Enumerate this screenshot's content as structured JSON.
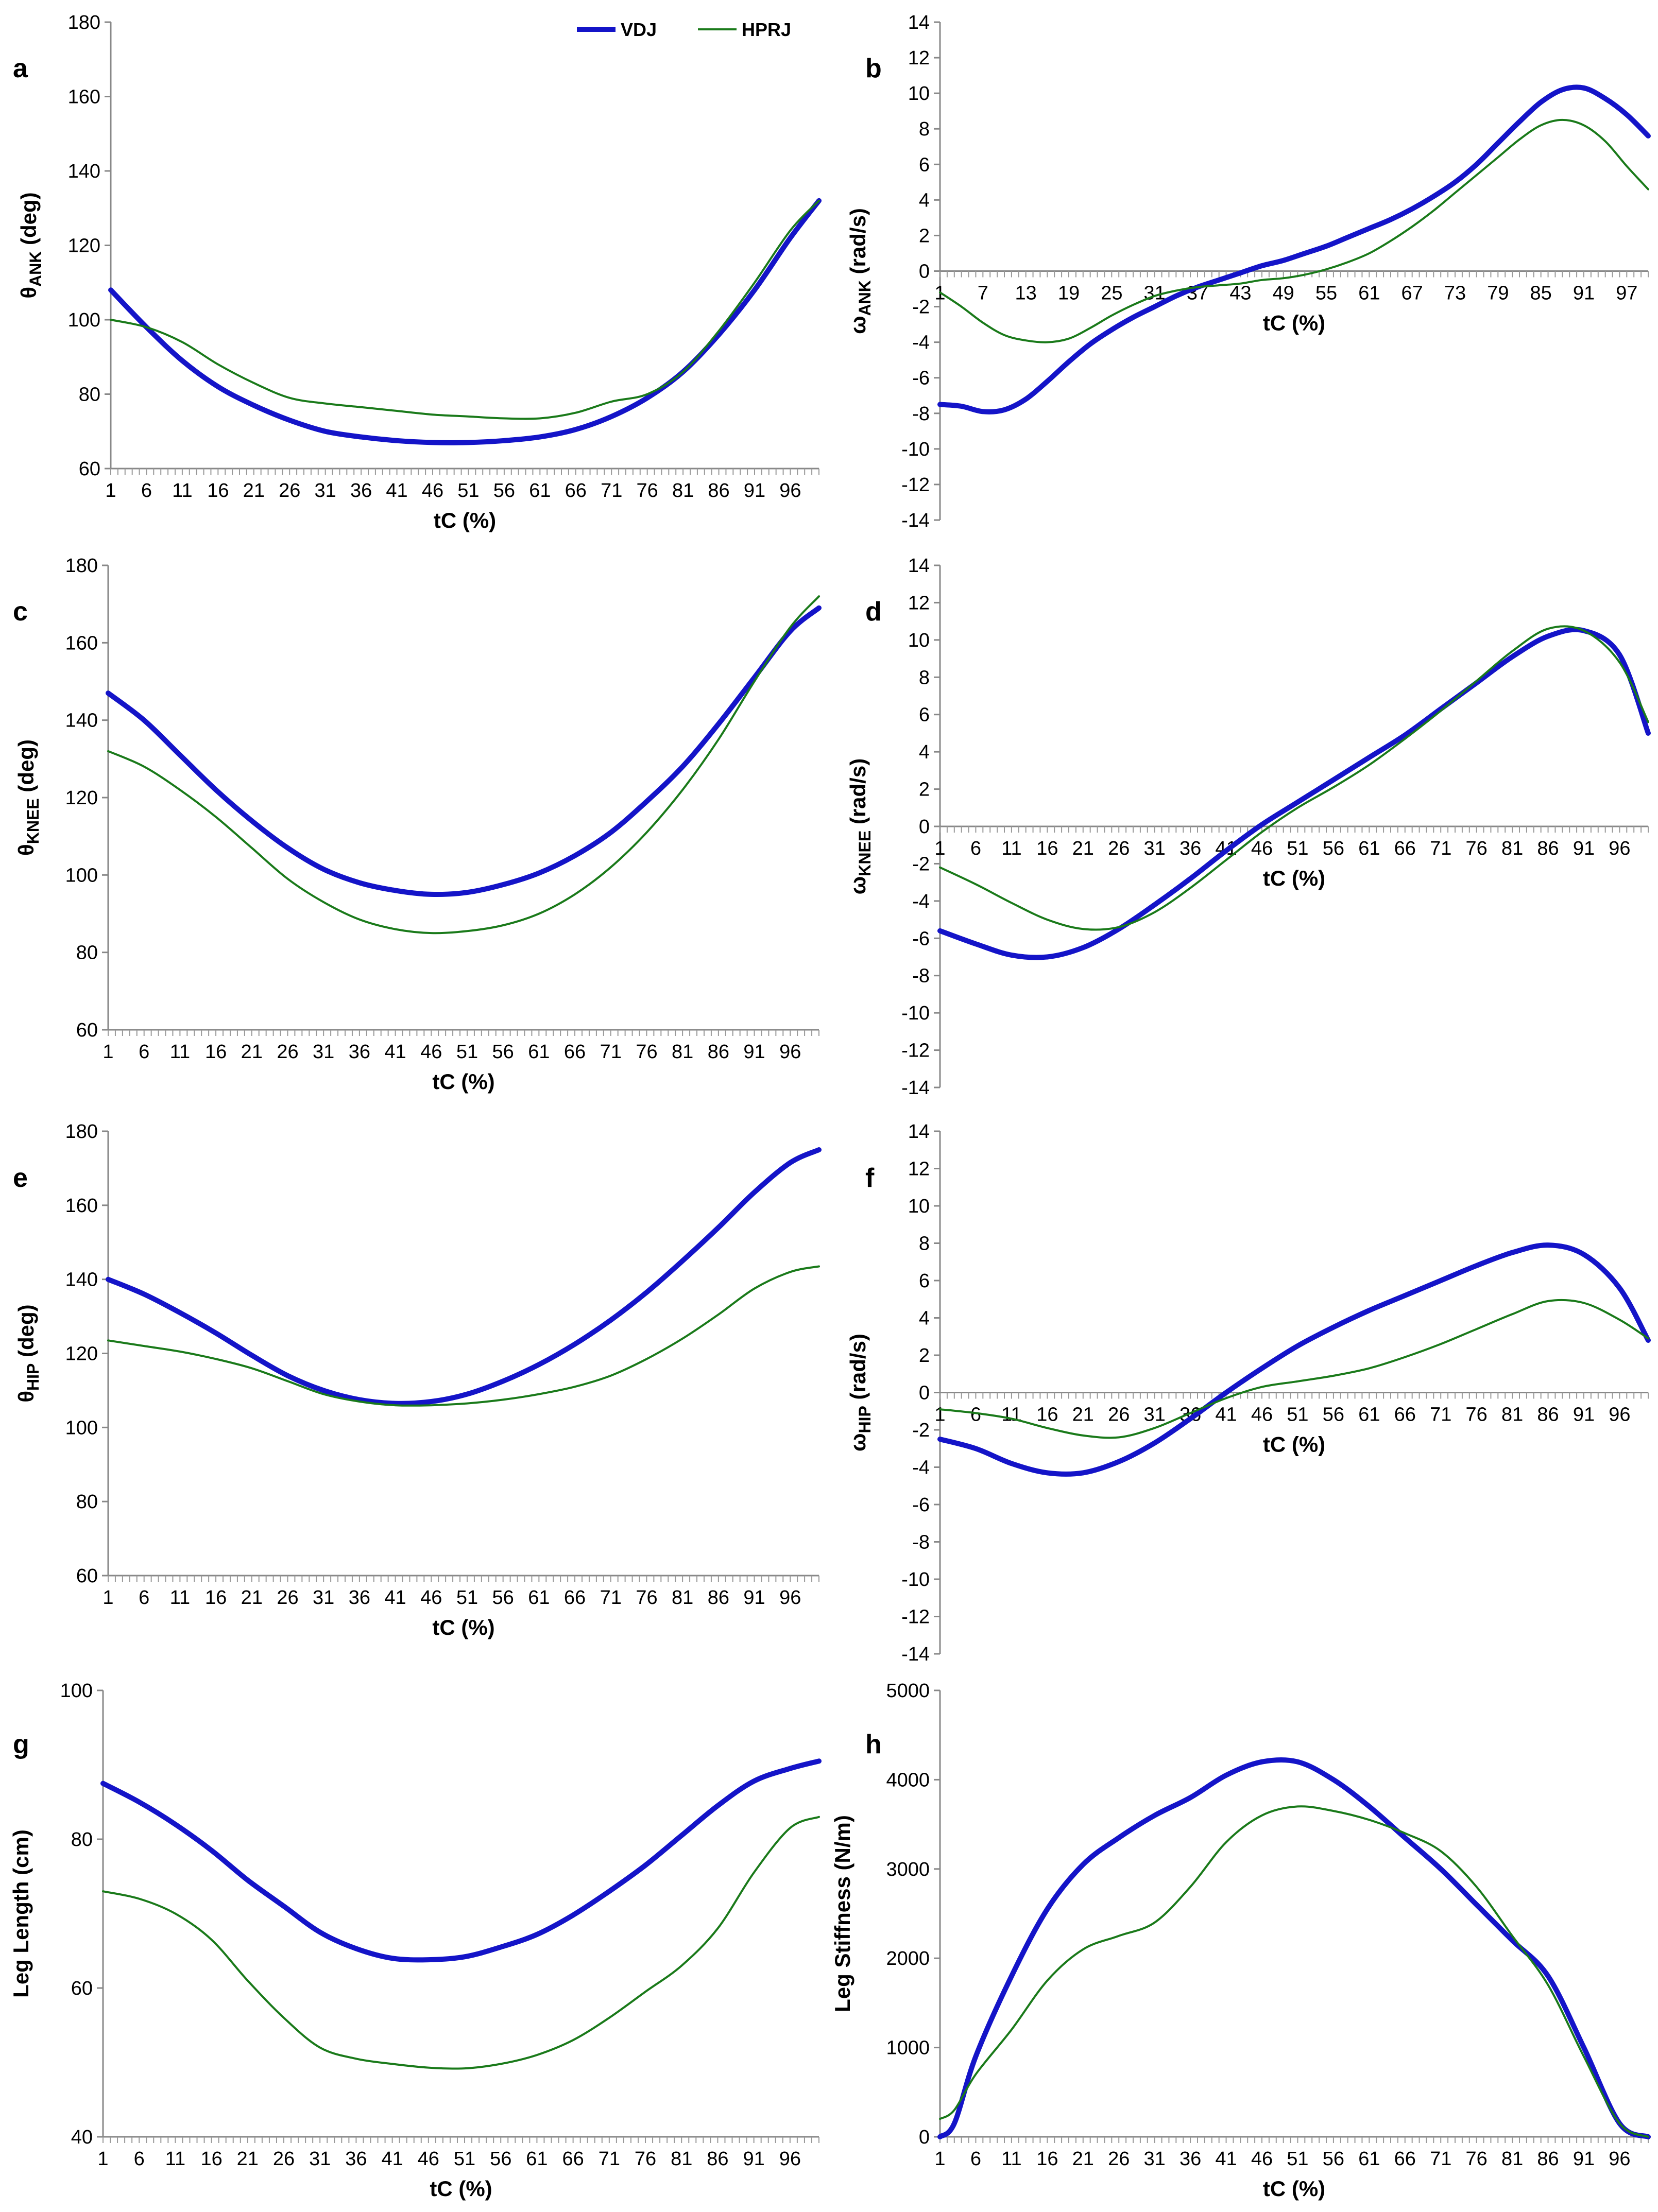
{
  "legend": {
    "series_names": [
      "VDJ",
      "HPRJ"
    ],
    "colors": [
      "#1414c8",
      "#1a7a1a"
    ]
  },
  "chart_data": [
    {
      "id": "a",
      "panel_label": "a",
      "type": "line",
      "ylabel": "θANK (deg)",
      "ylabel_symbol": "θ",
      "ylabel_sub": "ANK",
      "ylabel_unit": " (deg)",
      "xlabel": "tC (%)",
      "ylim": [
        60,
        180
      ],
      "yticks": [
        60,
        80,
        100,
        120,
        140,
        160,
        180
      ],
      "xlim": [
        1,
        100
      ],
      "xtick_start": 1,
      "xtick_step": 5,
      "xaxis_at_zero": false,
      "x": [
        1,
        6,
        11,
        16,
        21,
        26,
        31,
        36,
        41,
        46,
        51,
        56,
        61,
        66,
        71,
        76,
        81,
        86,
        91,
        96,
        100
      ],
      "series": [
        {
          "name": "VDJ",
          "values": [
            108,
            98,
            89,
            82,
            77,
            73,
            70,
            68.5,
            67.5,
            67,
            67,
            67.5,
            68.5,
            70.5,
            74,
            79,
            86,
            96,
            108,
            122,
            132
          ]
        },
        {
          "name": "HPRJ",
          "values": [
            100,
            98,
            94,
            88,
            83,
            79,
            77.5,
            76.5,
            75.5,
            74.5,
            74,
            73.5,
            73.5,
            75,
            78,
            80,
            86,
            97,
            110,
            124,
            132
          ]
        }
      ]
    },
    {
      "id": "b",
      "panel_label": "b",
      "type": "line",
      "ylabel": "ωANK (rad/s)",
      "ylabel_symbol": "ω",
      "ylabel_sub": "ANK",
      "ylabel_unit": " (rad/s)",
      "xlabel": "tC (%)",
      "ylim": [
        -14,
        14
      ],
      "yticks": [
        -14,
        -12,
        -10,
        -8,
        -6,
        -4,
        -2,
        0,
        2,
        4,
        6,
        8,
        10,
        12,
        14
      ],
      "xlim": [
        1,
        100
      ],
      "xtick_start": 1,
      "xtick_step": 6,
      "xaxis_at_zero": true,
      "x": [
        1,
        4,
        7,
        10,
        13,
        16,
        19,
        22,
        25,
        28,
        31,
        34,
        37,
        40,
        43,
        46,
        49,
        52,
        55,
        58,
        61,
        64,
        67,
        70,
        73,
        76,
        79,
        82,
        85,
        88,
        91,
        94,
        97,
        100
      ],
      "series": [
        {
          "name": "VDJ",
          "values": [
            -7.5,
            -7.6,
            -7.9,
            -7.8,
            -7.2,
            -6.2,
            -5.1,
            -4.1,
            -3.3,
            -2.6,
            -2.0,
            -1.4,
            -0.9,
            -0.5,
            -0.1,
            0.3,
            0.6,
            1.0,
            1.4,
            1.9,
            2.4,
            2.9,
            3.5,
            4.2,
            5.0,
            6.0,
            7.2,
            8.4,
            9.5,
            10.2,
            10.3,
            9.7,
            8.8,
            7.6
          ]
        },
        {
          "name": "HPRJ",
          "values": [
            -1.2,
            -2.0,
            -2.9,
            -3.6,
            -3.9,
            -4.0,
            -3.8,
            -3.2,
            -2.5,
            -1.9,
            -1.4,
            -1.1,
            -0.9,
            -0.8,
            -0.7,
            -0.5,
            -0.4,
            -0.2,
            0.1,
            0.5,
            1.0,
            1.7,
            2.5,
            3.4,
            4.4,
            5.4,
            6.4,
            7.4,
            8.2,
            8.5,
            8.2,
            7.3,
            5.9,
            4.6
          ]
        }
      ]
    },
    {
      "id": "c",
      "panel_label": "c",
      "type": "line",
      "ylabel": "θKNEE (deg)",
      "ylabel_symbol": "θ",
      "ylabel_sub": "KNEE",
      "ylabel_unit": " (deg)",
      "xlabel": "tC (%)",
      "ylim": [
        60,
        180
      ],
      "yticks": [
        60,
        80,
        100,
        120,
        140,
        160,
        180
      ],
      "xlim": [
        1,
        100
      ],
      "xtick_start": 1,
      "xtick_step": 5,
      "xaxis_at_zero": false,
      "x": [
        1,
        6,
        11,
        16,
        21,
        26,
        31,
        36,
        41,
        46,
        51,
        56,
        61,
        66,
        71,
        76,
        81,
        86,
        91,
        96,
        100
      ],
      "series": [
        {
          "name": "VDJ",
          "values": [
            147,
            140,
            131,
            122,
            114,
            107,
            101.5,
            98,
            96,
            95,
            95.5,
            97.5,
            100.5,
            105,
            111,
            119,
            128,
            139,
            151,
            163,
            169
          ]
        },
        {
          "name": "HPRJ",
          "values": [
            132,
            128,
            122,
            115,
            107,
            99,
            93,
            88.5,
            86,
            85,
            85.5,
            87,
            90,
            95,
            102,
            111,
            122,
            135,
            150,
            164,
            172
          ]
        }
      ]
    },
    {
      "id": "d",
      "panel_label": "d",
      "type": "line",
      "ylabel": "ωKNEE (rad/s)",
      "ylabel_symbol": "ω",
      "ylabel_sub": "KNEE",
      "ylabel_unit": " (rad/s)",
      "xlabel": "tC (%)",
      "ylim": [
        -14,
        14
      ],
      "yticks": [
        -14,
        -12,
        -10,
        -8,
        -6,
        -4,
        -2,
        0,
        2,
        4,
        6,
        8,
        10,
        12,
        14
      ],
      "xlim": [
        1,
        100
      ],
      "xtick_start": 1,
      "xtick_step": 5,
      "xaxis_at_zero": true,
      "x": [
        1,
        6,
        11,
        16,
        21,
        26,
        31,
        36,
        41,
        46,
        51,
        56,
        61,
        66,
        71,
        76,
        81,
        86,
        91,
        96,
        100
      ],
      "series": [
        {
          "name": "VDJ",
          "values": [
            -5.6,
            -6.3,
            -6.9,
            -7.0,
            -6.5,
            -5.5,
            -4.2,
            -2.8,
            -1.3,
            0.1,
            1.3,
            2.5,
            3.7,
            4.9,
            6.3,
            7.7,
            9.1,
            10.2,
            10.5,
            9.2,
            5.0
          ]
        },
        {
          "name": "HPRJ",
          "values": [
            -2.2,
            -3.1,
            -4.1,
            -5.0,
            -5.5,
            -5.4,
            -4.6,
            -3.3,
            -1.8,
            -0.3,
            1.0,
            2.1,
            3.3,
            4.7,
            6.2,
            7.8,
            9.4,
            10.6,
            10.5,
            8.8,
            5.6
          ]
        }
      ]
    },
    {
      "id": "e",
      "panel_label": "e",
      "type": "line",
      "ylabel": "θHIP (deg)",
      "ylabel_symbol": "θ",
      "ylabel_sub": "HIP",
      "ylabel_unit": " (deg)",
      "xlabel": "tC (%)",
      "ylim": [
        60,
        180
      ],
      "yticks": [
        60,
        80,
        100,
        120,
        140,
        160,
        180
      ],
      "xlim": [
        1,
        100
      ],
      "xtick_start": 1,
      "xtick_step": 5,
      "xaxis_at_zero": false,
      "x": [
        1,
        6,
        11,
        16,
        21,
        26,
        31,
        36,
        41,
        46,
        51,
        56,
        61,
        66,
        71,
        76,
        81,
        86,
        91,
        96,
        100
      ],
      "series": [
        {
          "name": "VDJ",
          "values": [
            140,
            136,
            131,
            125.5,
            119.5,
            114,
            110,
            107.5,
            106.5,
            107,
            109,
            112.5,
            117,
            122.5,
            129,
            136.5,
            145,
            154,
            163.5,
            171.5,
            175
          ]
        },
        {
          "name": "HPRJ",
          "values": [
            123.5,
            122,
            120.5,
            118.5,
            116,
            112.5,
            109,
            107,
            106,
            106,
            106.5,
            107.5,
            109,
            111,
            114,
            118.5,
            124,
            130.5,
            137.5,
            142,
            143.5
          ]
        }
      ]
    },
    {
      "id": "f",
      "panel_label": "f",
      "type": "line",
      "ylabel": "ωHIP (rad/s)",
      "ylabel_symbol": "ω",
      "ylabel_sub": "HIP",
      "ylabel_unit": " (rad/s)",
      "xlabel": "tC (%)",
      "ylim": [
        -14,
        14
      ],
      "yticks": [
        -14,
        -12,
        -10,
        -8,
        -6,
        -4,
        -2,
        0,
        2,
        4,
        6,
        8,
        10,
        12,
        14
      ],
      "xlim": [
        1,
        100
      ],
      "xtick_start": 1,
      "xtick_step": 5,
      "xaxis_at_zero": true,
      "x": [
        1,
        6,
        11,
        16,
        21,
        26,
        31,
        36,
        41,
        46,
        51,
        56,
        61,
        66,
        71,
        76,
        81,
        86,
        91,
        96,
        100
      ],
      "series": [
        {
          "name": "VDJ",
          "values": [
            -2.5,
            -3.0,
            -3.8,
            -4.3,
            -4.3,
            -3.7,
            -2.7,
            -1.4,
            0.0,
            1.3,
            2.5,
            3.5,
            4.4,
            5.2,
            6.0,
            6.8,
            7.5,
            7.9,
            7.4,
            5.6,
            2.8
          ]
        },
        {
          "name": "HPRJ",
          "values": [
            -0.9,
            -1.1,
            -1.4,
            -1.9,
            -2.3,
            -2.4,
            -1.9,
            -1.1,
            -0.3,
            0.3,
            0.6,
            0.9,
            1.3,
            1.9,
            2.6,
            3.4,
            4.2,
            4.9,
            4.8,
            3.9,
            2.9
          ]
        }
      ]
    },
    {
      "id": "g",
      "panel_label": "g",
      "type": "line",
      "ylabel": "Leg Length (cm)",
      "ylabel_symbol": "",
      "ylabel_sub": "",
      "ylabel_unit": "",
      "xlabel": "tC (%)",
      "ylim": [
        40,
        100
      ],
      "yticks": [
        40,
        60,
        80,
        100
      ],
      "xlim": [
        1,
        100
      ],
      "xtick_start": 1,
      "xtick_step": 5,
      "xaxis_at_zero": false,
      "x": [
        1,
        6,
        11,
        16,
        21,
        26,
        31,
        36,
        41,
        46,
        51,
        56,
        61,
        66,
        71,
        76,
        81,
        86,
        91,
        96,
        100
      ],
      "series": [
        {
          "name": "VDJ",
          "values": [
            87.5,
            85,
            82,
            78.5,
            74.5,
            71,
            67.5,
            65.3,
            64,
            63.8,
            64.2,
            65.5,
            67.2,
            69.8,
            73,
            76.5,
            80.5,
            84.5,
            87.8,
            89.5,
            90.5
          ]
        },
        {
          "name": "HPRJ",
          "values": [
            73,
            72,
            70,
            66.5,
            61,
            56,
            52,
            50.5,
            49.8,
            49.3,
            49.2,
            49.8,
            51,
            53,
            56,
            59.5,
            63,
            68,
            75.5,
            81.5,
            83
          ]
        }
      ]
    },
    {
      "id": "h",
      "panel_label": "h",
      "type": "line",
      "ylabel": "Leg Stiffness (N/m)",
      "ylabel_symbol": "",
      "ylabel_sub": "",
      "ylabel_unit": "",
      "xlabel": "tC (%)",
      "ylim": [
        0,
        5000
      ],
      "yticks": [
        0,
        1000,
        2000,
        3000,
        4000,
        5000
      ],
      "xlim": [
        1,
        100
      ],
      "xtick_start": 1,
      "xtick_step": 5,
      "xaxis_at_zero": false,
      "x": [
        1,
        3,
        6,
        11,
        16,
        21,
        26,
        31,
        36,
        41,
        46,
        51,
        56,
        61,
        66,
        71,
        76,
        81,
        86,
        91,
        96,
        100
      ],
      "series": [
        {
          "name": "VDJ",
          "values": [
            0,
            150,
            900,
            1800,
            2550,
            3050,
            3350,
            3600,
            3800,
            4050,
            4200,
            4200,
            4000,
            3700,
            3350,
            3000,
            2600,
            2200,
            1800,
            1000,
            150,
            0
          ]
        },
        {
          "name": "HPRJ",
          "values": [
            200,
            300,
            700,
            1200,
            1750,
            2100,
            2250,
            2400,
            2800,
            3300,
            3600,
            3700,
            3650,
            3550,
            3400,
            3200,
            2800,
            2250,
            1700,
            900,
            150,
            0
          ]
        }
      ]
    }
  ]
}
